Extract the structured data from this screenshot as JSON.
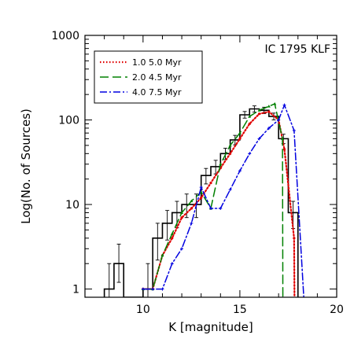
{
  "chart_data": {
    "type": "line",
    "title": "IC 1795 KLF",
    "xlabel": "K [magnitude]",
    "ylabel": "Log(No. of Sources)",
    "xlim": [
      7,
      20
    ],
    "ylim": [
      0.8,
      1000
    ],
    "y_scale": "log",
    "grid": false,
    "legend_position": "top-left",
    "x_ticks": [
      10,
      15,
      20
    ],
    "y_ticks": [
      1,
      10,
      100,
      1000
    ],
    "histogram": {
      "name": "observed",
      "color": "#000000",
      "bin_edges": [
        8.0,
        8.5,
        9.0,
        9.5,
        10.0,
        10.5,
        11.0,
        11.5,
        12.0,
        12.5,
        13.0,
        13.5,
        14.0,
        14.5,
        15.0,
        15.5,
        16.0,
        16.5,
        17.0,
        17.5,
        18.0
      ],
      "counts": [
        1,
        2,
        0.8,
        0.8,
        1,
        4,
        6,
        8,
        10,
        10,
        22,
        28,
        40,
        58,
        115,
        135,
        130,
        110,
        60,
        8
      ],
      "errors_low": [
        0.8,
        0.8,
        0,
        0,
        0.8,
        1.8,
        2.2,
        2.7,
        3.0,
        3.0,
        4.5,
        5.0,
        6.0,
        7.2,
        10.0,
        11.0,
        11.0,
        10.0,
        7.5,
        2.8
      ],
      "errors_high": [
        1.0,
        1.4,
        0,
        0,
        1.0,
        2.0,
        2.5,
        2.9,
        3.3,
        3.3,
        4.7,
        5.3,
        6.3,
        7.7,
        10.8,
        11.6,
        11.4,
        10.5,
        7.8,
        2.9
      ]
    },
    "series": [
      {
        "name": "1.0 5.0 Myr",
        "color": "#e00000",
        "style": "dotted",
        "x": [
          10.0,
          10.5,
          11.0,
          11.5,
          12.0,
          12.5,
          13.0,
          13.5,
          14.0,
          14.5,
          15.0,
          15.5,
          16.0,
          16.5,
          17.0,
          17.3,
          17.8,
          17.82
        ],
        "y": [
          1,
          1,
          2.5,
          4,
          7,
          9,
          12,
          18,
          27,
          40,
          60,
          90,
          118,
          125,
          100,
          45,
          4,
          0.8
        ]
      },
      {
        "name": "2.0 4.5 Myr",
        "color": "#008000",
        "style": "longdash",
        "x": [
          10.0,
          10.5,
          11.0,
          11.5,
          12.0,
          12.5,
          13.0,
          13.5,
          14.0,
          14.5,
          15.0,
          15.5,
          16.0,
          16.5,
          16.8,
          17.2,
          17.22
        ],
        "y": [
          1,
          1,
          2.5,
          4.5,
          8,
          11,
          14,
          9,
          30,
          50,
          70,
          110,
          130,
          145,
          155,
          60,
          0.8
        ]
      },
      {
        "name": "4.0 7.5 Myr",
        "color": "#0000e0",
        "style": "dashdot",
        "x": [
          10.0,
          10.5,
          11.0,
          11.5,
          12.0,
          12.5,
          13.0,
          13.5,
          14.0,
          14.5,
          15.0,
          15.5,
          16.0,
          16.5,
          17.0,
          17.3,
          17.8,
          18.3
        ],
        "y": [
          1,
          1,
          1,
          2,
          3,
          6,
          16,
          9,
          9,
          15,
          25,
          40,
          60,
          80,
          100,
          150,
          75,
          0.8
        ]
      }
    ]
  }
}
